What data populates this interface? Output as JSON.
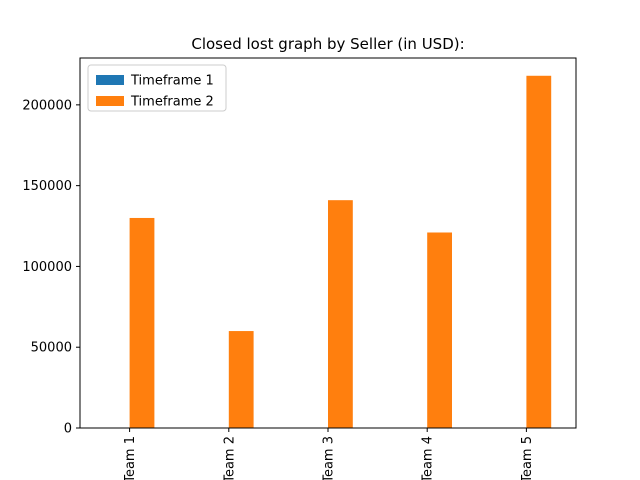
{
  "chart_data": {
    "type": "bar",
    "title": "Closed lost graph by Seller (in USD):",
    "xlabel": "",
    "ylabel": "",
    "categories": [
      "Team 1",
      "Team 2",
      "Team 3",
      "Team 4",
      "Team 5"
    ],
    "series": [
      {
        "name": "Timeframe 1",
        "color": "#1f77b4",
        "values": [
          0,
          0,
          0,
          0,
          0
        ]
      },
      {
        "name": "Timeframe 2",
        "color": "#ff7f0e",
        "values": [
          130000,
          60000,
          141000,
          121000,
          218000
        ]
      }
    ],
    "ylim": [
      0,
      229000
    ],
    "yticks": [
      0,
      50000,
      100000,
      150000,
      200000
    ],
    "legend_position": "top-left",
    "grid": false
  }
}
